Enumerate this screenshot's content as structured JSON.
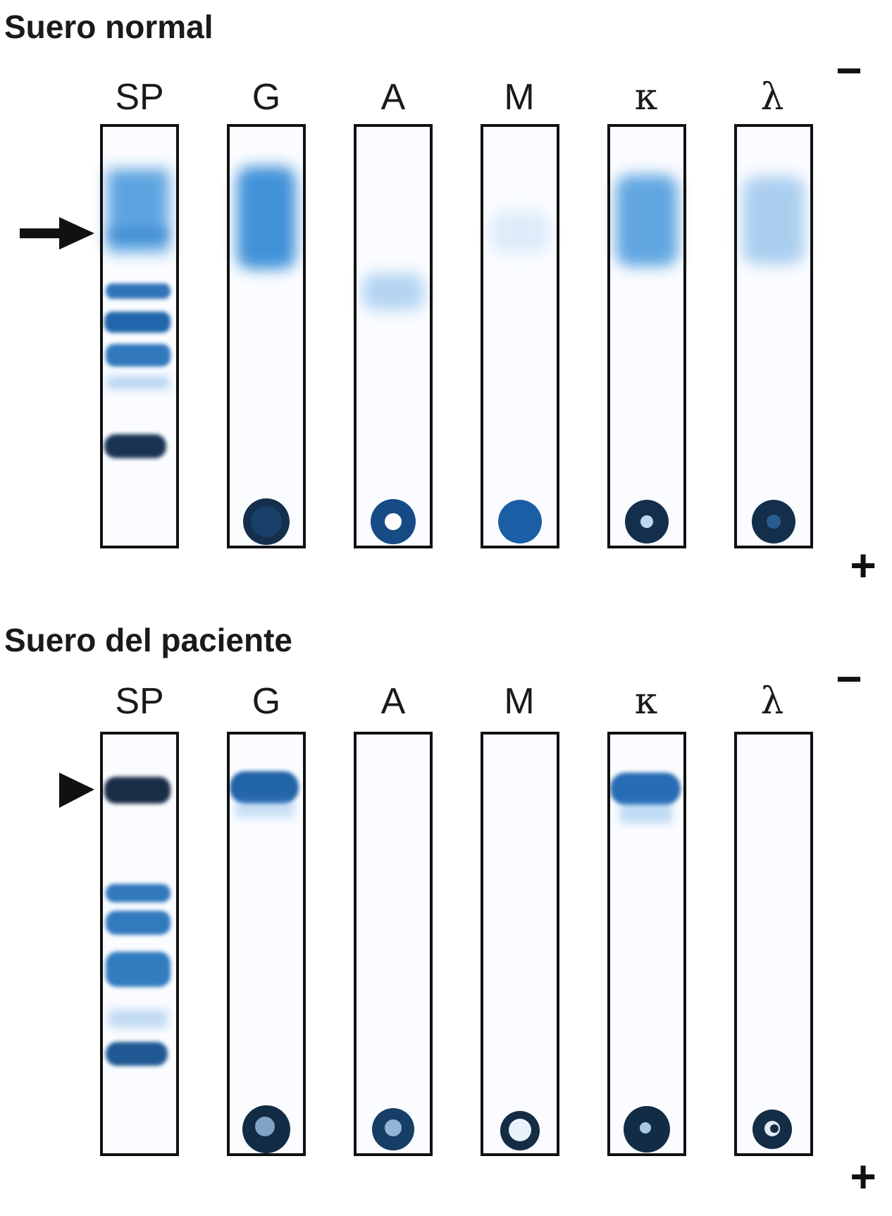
{
  "colors": {
    "stain": "#1e73c8",
    "stain_dark": "#0f2e52",
    "frame": "#111111",
    "text": "#1a1a1a"
  },
  "panels": [
    {
      "title": "Suero normal",
      "minus_sign": "−",
      "plus_sign": "+",
      "marker": "arrow-icon",
      "lanes": [
        {
          "label": "SP",
          "greek": false
        },
        {
          "label": "G",
          "greek": false
        },
        {
          "label": "A",
          "greek": false
        },
        {
          "label": "M",
          "greek": false
        },
        {
          "label": "κ",
          "greek": true
        },
        {
          "label": "λ",
          "greek": true
        }
      ]
    },
    {
      "title": "Suero del paciente",
      "minus_sign": "−",
      "plus_sign": "+",
      "marker": "triangle-pointer-icon",
      "lanes": [
        {
          "label": "SP",
          "greek": false
        },
        {
          "label": "G",
          "greek": false
        },
        {
          "label": "A",
          "greek": false
        },
        {
          "label": "M",
          "greek": false
        },
        {
          "label": "κ",
          "greek": true
        },
        {
          "label": "λ",
          "greek": true
        }
      ]
    }
  ]
}
